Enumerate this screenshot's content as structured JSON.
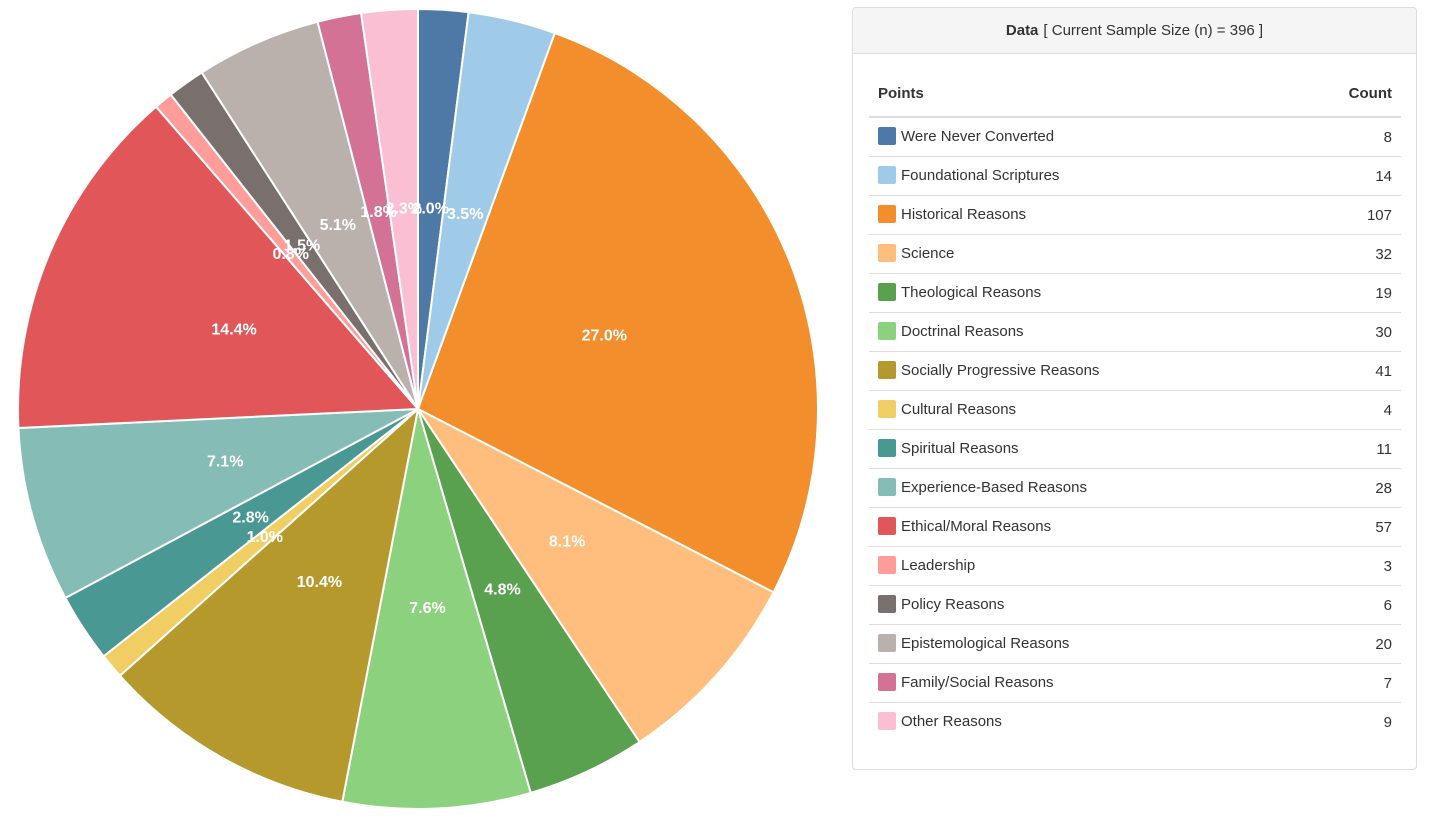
{
  "chart_data": {
    "type": "pie",
    "categories": [
      "Were Never Converted",
      "Foundational Scriptures",
      "Historical Reasons",
      "Science",
      "Theological Reasons",
      "Doctrinal Reasons",
      "Socially Progressive Reasons",
      "Cultural Reasons",
      "Spiritual Reasons",
      "Experience-Based Reasons",
      "Ethical/Moral Reasons",
      "Leadership",
      "Policy Reasons",
      "Epistemological Reasons",
      "Family/Social Reasons",
      "Other Reasons"
    ],
    "values": [
      8,
      14,
      107,
      32,
      19,
      30,
      41,
      4,
      11,
      28,
      57,
      3,
      6,
      20,
      7,
      9
    ],
    "colors": [
      "#4e79a7",
      "#a0cbe8",
      "#f28e2b",
      "#ffbe7d",
      "#59a14f",
      "#8cd17d",
      "#b6992d",
      "#f1ce63",
      "#499894",
      "#86bcb6",
      "#e15759",
      "#ff9d9a",
      "#79706e",
      "#bab0ac",
      "#d37295",
      "#fabfd2"
    ],
    "slice_labels": [
      "2.0%",
      "3.5%",
      "27.0%",
      "8.1%",
      "4.8%",
      "7.6%",
      "10.4%",
      "1.0%",
      "2.8%",
      "7.1%",
      "14.4%",
      "0.8%",
      "1.5%",
      "5.1%",
      "1.8%",
      "2.3%"
    ],
    "start_angle": "12 o'clock, clockwise"
  },
  "panel": {
    "title_strong": "Data",
    "title_rest": "[ Current Sample Size (n) = 396 ]",
    "col_points": "Points",
    "col_count": "Count",
    "rows": [
      {
        "label": "Were Never Converted",
        "count": "8",
        "color": "#4e79a7"
      },
      {
        "label": "Foundational Scriptures",
        "count": "14",
        "color": "#a0cbe8"
      },
      {
        "label": "Historical Reasons",
        "count": "107",
        "color": "#f28e2b"
      },
      {
        "label": "Science",
        "count": "32",
        "color": "#ffbe7d"
      },
      {
        "label": "Theological Reasons",
        "count": "19",
        "color": "#59a14f"
      },
      {
        "label": "Doctrinal Reasons",
        "count": "30",
        "color": "#8cd17d"
      },
      {
        "label": "Socially Progressive Reasons",
        "count": "41",
        "color": "#b6992d"
      },
      {
        "label": "Cultural Reasons",
        "count": "4",
        "color": "#f1ce63"
      },
      {
        "label": "Spiritual Reasons",
        "count": "11",
        "color": "#499894"
      },
      {
        "label": "Experience-Based Reasons",
        "count": "28",
        "color": "#86bcb6"
      },
      {
        "label": "Ethical/Moral Reasons",
        "count": "57",
        "color": "#e15759"
      },
      {
        "label": "Leadership",
        "count": "3",
        "color": "#ff9d9a"
      },
      {
        "label": "Policy Reasons",
        "count": "6",
        "color": "#79706e"
      },
      {
        "label": "Epistemological Reasons",
        "count": "20",
        "color": "#bab0ac"
      },
      {
        "label": "Family/Social Reasons",
        "count": "7",
        "color": "#d37295"
      },
      {
        "label": "Other Reasons",
        "count": "9",
        "color": "#fabfd2"
      }
    ]
  }
}
